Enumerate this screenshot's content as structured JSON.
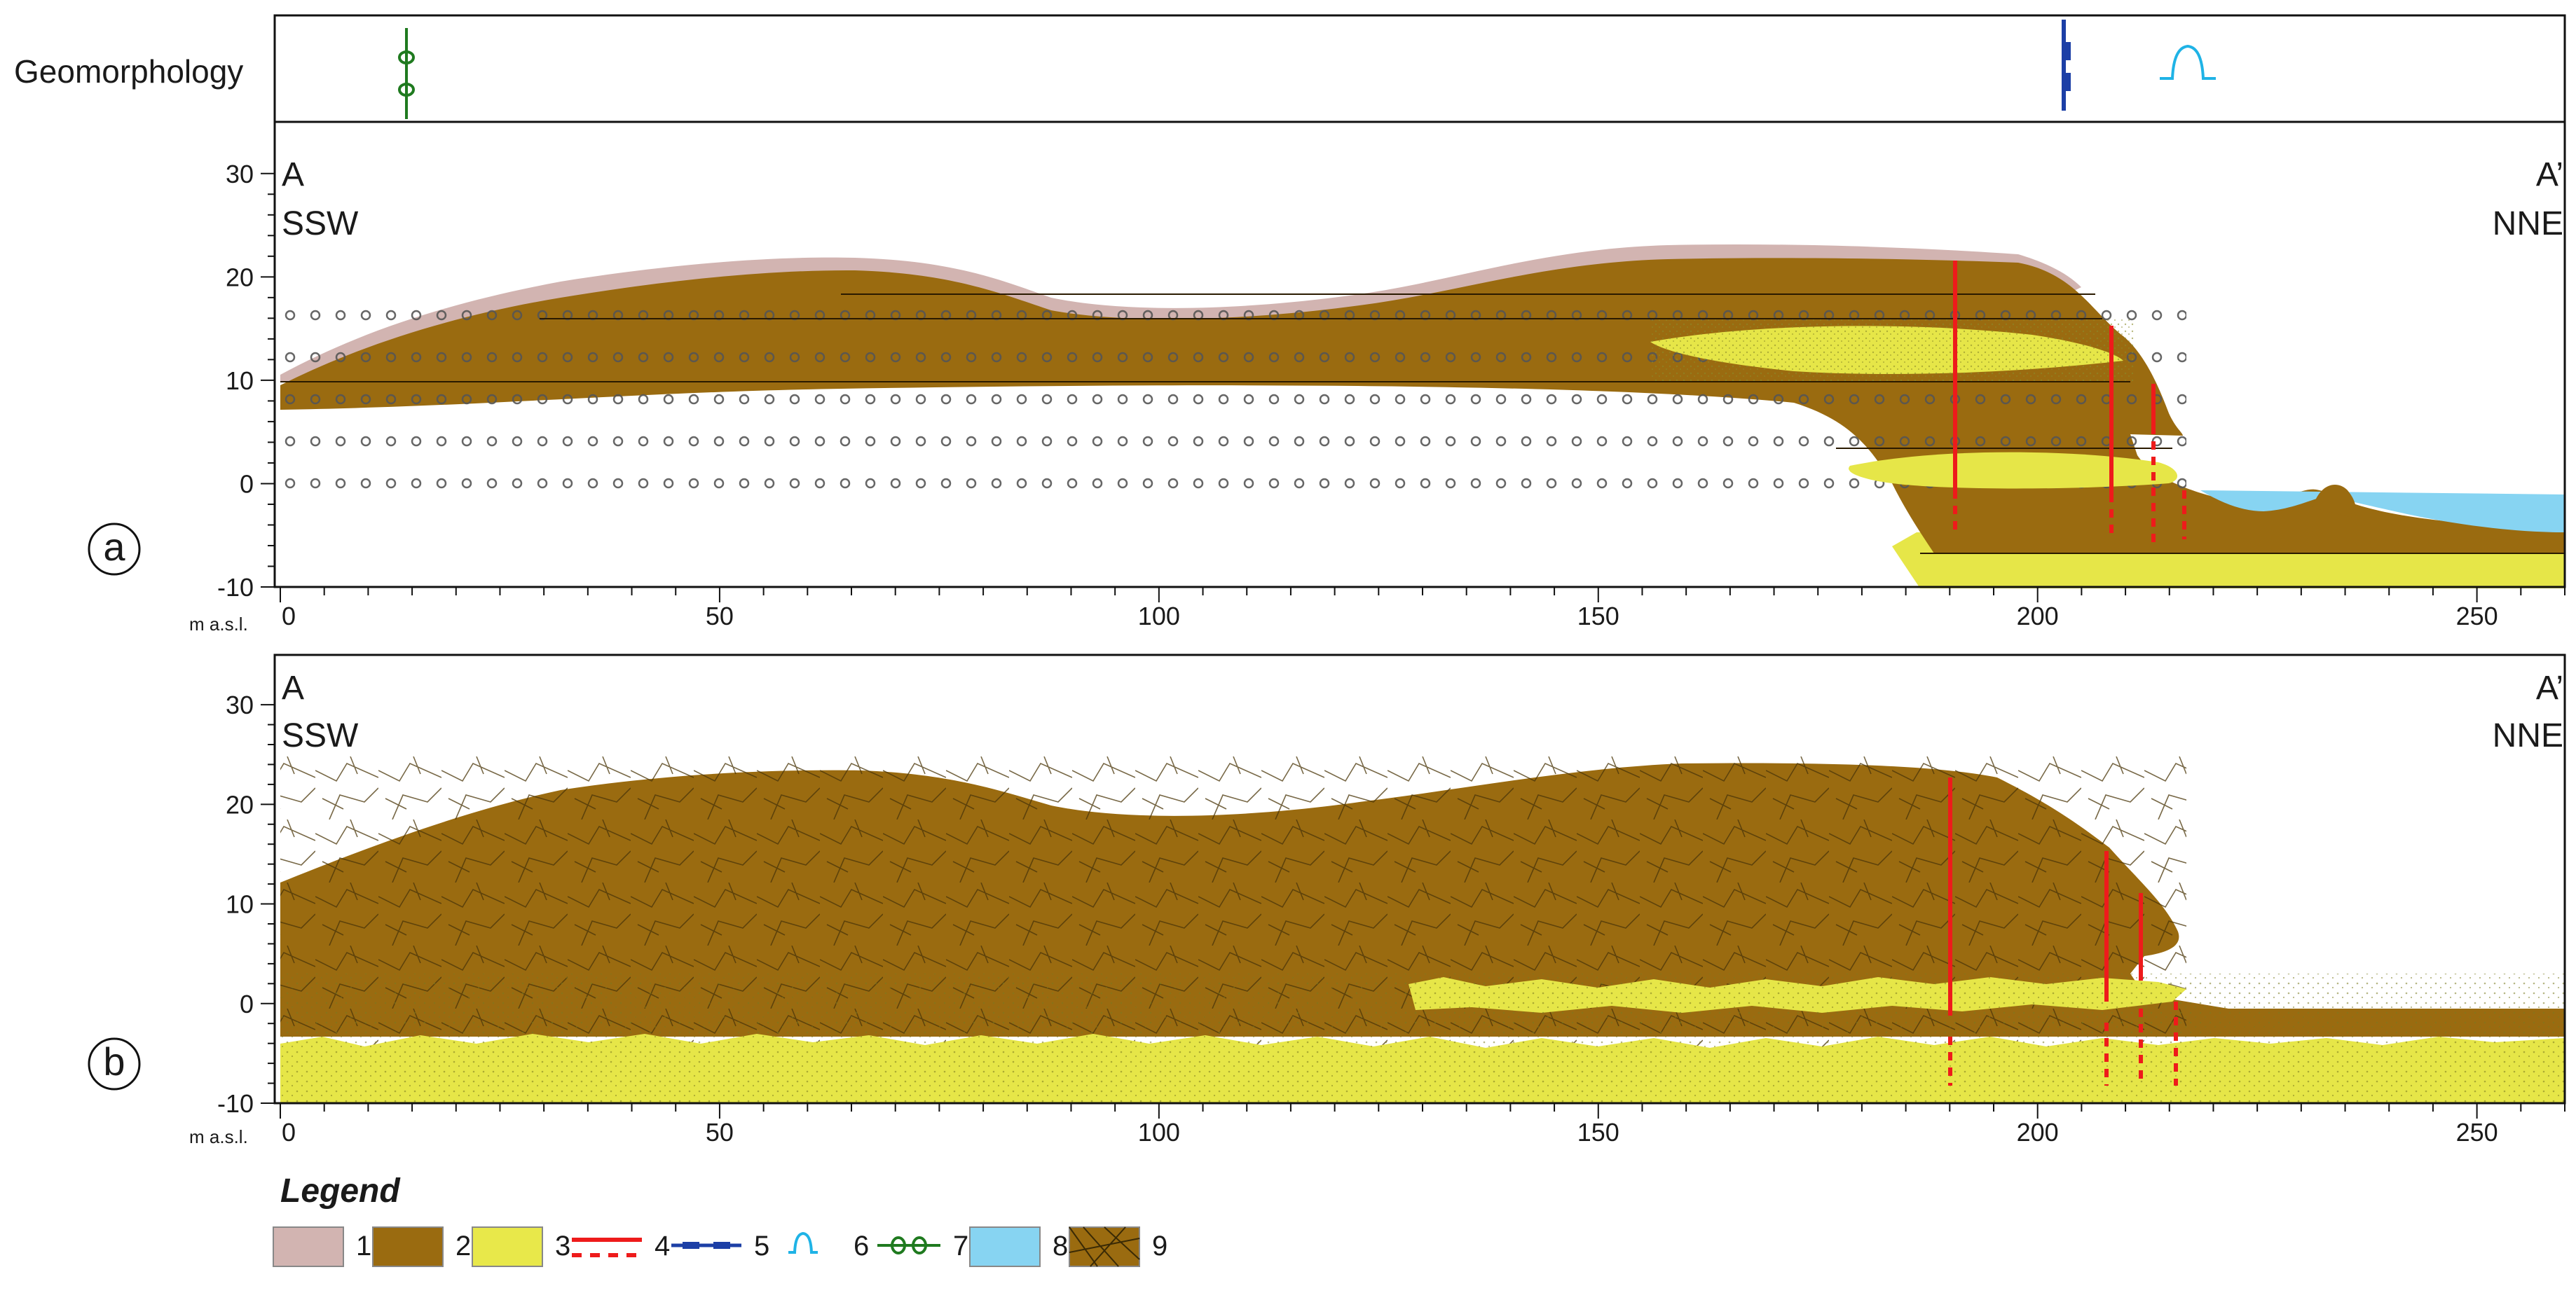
{
  "figure": {
    "geomorphology_label": "Geomorphology",
    "units_label": "m a.s.l.",
    "panels": [
      {
        "id": "a",
        "left_label_top": "A",
        "left_label_bottom": "SSW",
        "right_label_top": "A’",
        "right_label_bottom": "NNE"
      },
      {
        "id": "b",
        "left_label_top": "A",
        "left_label_bottom": "SSW",
        "right_label_top": "A’",
        "right_label_bottom": "NNE"
      }
    ],
    "x_axis": {
      "min": 0,
      "max": 260,
      "major_ticks": [
        "0",
        "50",
        "100",
        "150",
        "200",
        "250"
      ]
    },
    "y_axis": {
      "min": -10,
      "max": 35,
      "tick_labels": [
        "30",
        "20",
        "10",
        "0",
        "-10"
      ]
    },
    "legend": {
      "title": "Legend",
      "items": [
        {
          "number": "1",
          "icon": "swatch-unit-1",
          "color": "#d2b4b1"
        },
        {
          "number": "2",
          "icon": "swatch-unit-2",
          "color": "#9a6b10"
        },
        {
          "number": "3",
          "icon": "swatch-unit-3",
          "color": "#e8e84a"
        },
        {
          "number": "4",
          "icon": "line-red-solid-dashed",
          "color": "#ee1b1b"
        },
        {
          "number": "5",
          "icon": "line-blue-scarp",
          "color": "#1c3fa6"
        },
        {
          "number": "6",
          "icon": "symbol-cyan-bump",
          "color": "#1fb3e6"
        },
        {
          "number": "7",
          "icon": "symbol-green-loops",
          "color": "#1f7a1f"
        },
        {
          "number": "8",
          "icon": "swatch-water",
          "color": "#87d4f2"
        },
        {
          "number": "9",
          "icon": "swatch-textured-brown",
          "color": "#9a6b10"
        }
      ]
    }
  }
}
